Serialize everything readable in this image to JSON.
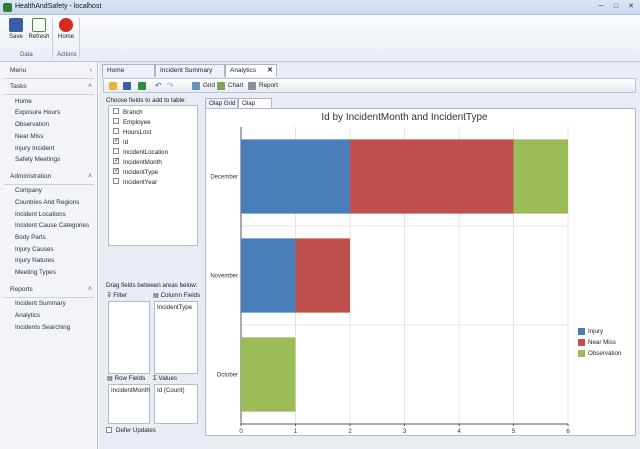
{
  "window": {
    "title": "HealthAndSafety - localhost",
    "minimize": "─",
    "maximize": "□",
    "close": "✕"
  },
  "ribbon": {
    "buttons": [
      {
        "label": "Save",
        "icon": "save-icon"
      },
      {
        "label": "Refresh",
        "icon": "refresh-icon"
      },
      {
        "label": "Home",
        "icon": "home-icon"
      }
    ],
    "groups": [
      "Data",
      "Actions"
    ]
  },
  "sidebar": {
    "menu_title": "Menu",
    "sections": [
      {
        "title": "Tasks",
        "items": [
          "Home",
          "Exposure Hours",
          "Observation",
          "Near Miss",
          "Injury Incident",
          "Safety Meetings"
        ]
      },
      {
        "title": "Administration",
        "items": [
          "Company",
          "Countries And Regions",
          "Incident Locations",
          "Incident Cause Categories",
          "Body Parts",
          "Injury Causes",
          "Injury Natures",
          "Meeting Types"
        ]
      },
      {
        "title": "Reports",
        "items": [
          "Incident Summary",
          "Analytics",
          "Incidents Searching"
        ]
      }
    ]
  },
  "tabs": [
    {
      "label": "Home",
      "active": false
    },
    {
      "label": "Incident Summary",
      "active": false
    },
    {
      "label": "Analytics",
      "active": true,
      "close": "✕"
    }
  ],
  "toolbar": {
    "grid_label": "Grid",
    "chart_label": "Chart",
    "report_label": "Report"
  },
  "olap": {
    "choose_label": "Choose fields to add to table:",
    "fields": [
      {
        "name": "Branch",
        "checked": false
      },
      {
        "name": "Employee",
        "checked": false
      },
      {
        "name": "HoursLost",
        "checked": false
      },
      {
        "name": "Id",
        "checked": true
      },
      {
        "name": "IncidentLocation",
        "checked": false
      },
      {
        "name": "IncidentMonth",
        "checked": true
      },
      {
        "name": "IncidentType",
        "checked": true
      },
      {
        "name": "IncidentYear",
        "checked": false
      }
    ],
    "drag_label": "Drag fields between areas below:",
    "filter_label": "Filter",
    "column_fields_label": "Column Fields",
    "column_fields_value": "IncidentType",
    "row_fields_label": "Row Fields",
    "row_fields_value": "IncidentMonth",
    "values_label": "Values",
    "values_value": "Id (Count)",
    "defer_label": "Defer Updates",
    "check_mark": "✓"
  },
  "subtabs": [
    {
      "label": "Olap Grid",
      "active": false
    },
    {
      "label": "Olap Chart",
      "active": true
    }
  ],
  "chart_data": {
    "type": "bar",
    "orientation": "horizontal",
    "stacked": true,
    "title": "Id by IncidentMonth and IncidentType",
    "categories": [
      "December",
      "November",
      "October"
    ],
    "series": [
      {
        "name": "Injury",
        "color": "#4a7ebb",
        "values": [
          2,
          1,
          0
        ]
      },
      {
        "name": "Near Miss",
        "color": "#c0504d",
        "values": [
          3,
          1,
          0
        ]
      },
      {
        "name": "Observation",
        "color": "#9bbb59",
        "values": [
          1,
          0,
          1
        ]
      }
    ],
    "xlim": [
      0,
      6
    ],
    "xticks": [
      "0",
      "1",
      "2",
      "3",
      "4",
      "5",
      "6"
    ],
    "grid": true,
    "legend": "right"
  }
}
